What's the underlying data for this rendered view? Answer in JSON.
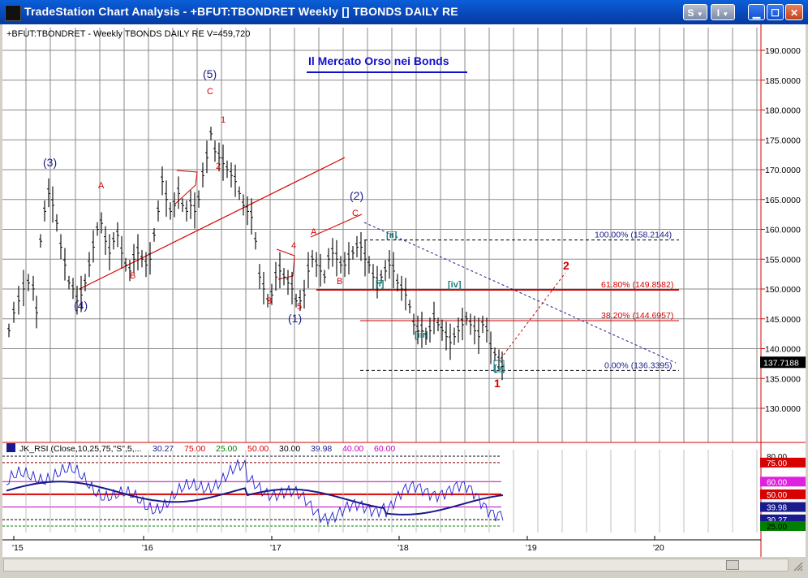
{
  "window": {
    "title": "TradeStation Chart Analysis - +BFUT:TBONDRET Weekly [] TBONDS DAILY RE",
    "btn_s": "S",
    "btn_i": "I"
  },
  "chart_header": "+BFUT:TBONDRET - Weekly  TBONDS DAILY RE  V=459,720",
  "chart_title": "Il Mercato Orso nei Bonds",
  "price_axis": [
    "190.0000",
    "185.0000",
    "180.0000",
    "175.0000",
    "170.0000",
    "165.0000",
    "160.0000",
    "155.0000",
    "150.0000",
    "145.0000",
    "140.0000",
    "135.0000",
    "130.0000"
  ],
  "last_price": "137.7188",
  "x_axis": [
    "'15",
    "'16",
    "'17",
    "'18",
    "'19",
    "'20"
  ],
  "fib_levels": [
    {
      "label": "100.00% (158.2144)",
      "value": 158.2144
    },
    {
      "label": "61.80% (149.8582)",
      "value": 149.8582
    },
    {
      "label": "38.20% (144.6957)",
      "value": 144.6957
    },
    {
      "label": "0.00% (136.3395)",
      "value": 136.3395
    }
  ],
  "wave_labels": {
    "major": [
      "(3)",
      "(4)",
      "(5)",
      "(1)",
      "(2)"
    ],
    "minor": [
      "A",
      "B",
      "C",
      "1",
      "2",
      "3",
      "4",
      "5",
      "A",
      "B",
      "C"
    ],
    "sub": [
      "[i]",
      "[ii]",
      "[iii]",
      "[iv]",
      "[v]"
    ],
    "target": [
      "1",
      "2"
    ]
  },
  "indicator": {
    "name": "JK_RSI (Close,10,25,75,\"S\",5,...",
    "values": [
      "30.27",
      "75.00",
      "25.00",
      "50.00",
      "30.00",
      "39.98",
      "40.00",
      "60.00"
    ],
    "value_colors": [
      "#1a1a8c",
      "#d80000",
      "#008000",
      "#d80000",
      "#000000",
      "#1a1a8c",
      "#c000c0",
      "#c000c0"
    ],
    "axis": [
      "80.00",
      "75.00",
      "60.00",
      "50.00",
      "39.98",
      "30.27",
      "25.00"
    ]
  }
}
